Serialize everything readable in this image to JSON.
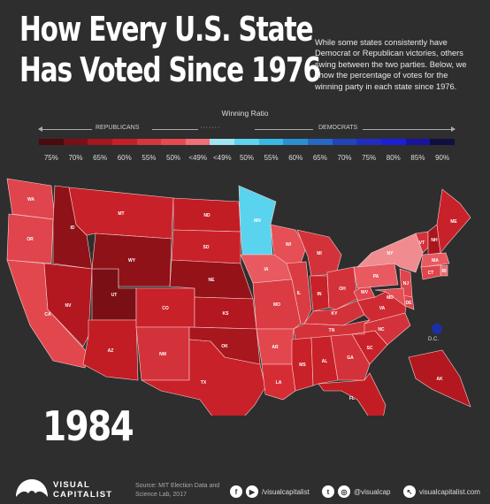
{
  "title": {
    "line1": "How Every U.S. State",
    "line2": "Has Voted Since 1976"
  },
  "subtitle": "While some states consistently have Democrat or Republican victories, others swing between the two parties. Below, we show the percentage of votes for the winning party in each state since 1976.",
  "legend": {
    "title": "Winning Ratio",
    "republicans_label": "REPUBLICANS",
    "democrats_label": "DEMOCRATS",
    "dots": "·······",
    "scale_labels": [
      "75%",
      "70%",
      "65%",
      "60%",
      "55%",
      "50%",
      "<49%",
      "<49%",
      "50%",
      "55%",
      "60%",
      "65%",
      "70%",
      "75%",
      "80%",
      "85%",
      "90%"
    ],
    "scale_colors": [
      "#4a0a0e",
      "#7a1016",
      "#a5161e",
      "#c51f28",
      "#d9353c",
      "#e64a50",
      "#f07075",
      "#9fe6f2",
      "#5fd2ee",
      "#3ab8e4",
      "#2a90d2",
      "#2768c4",
      "#2244b8",
      "#1f2ec0",
      "#1c1fd8",
      "#18149e",
      "#101040"
    ]
  },
  "year": "1984",
  "map": {
    "states": [
      {
        "id": "WA",
        "label": "WA",
        "color": "#e0444c"
      },
      {
        "id": "OR",
        "label": "OR",
        "color": "#e0444c"
      },
      {
        "id": "CA",
        "label": "CA",
        "color": "#e3474e"
      },
      {
        "id": "ID",
        "label": "ID",
        "color": "#8f1218"
      },
      {
        "id": "NV",
        "label": "NV",
        "color": "#b3171f"
      },
      {
        "id": "UT",
        "label": "UT",
        "color": "#7a0f15"
      },
      {
        "id": "AZ",
        "label": "AZ",
        "color": "#c21d25"
      },
      {
        "id": "MT",
        "label": "MT",
        "color": "#c92129"
      },
      {
        "id": "WY",
        "label": "WY",
        "color": "#8f1218"
      },
      {
        "id": "CO",
        "label": "CO",
        "color": "#c92129"
      },
      {
        "id": "NM",
        "label": "NM",
        "color": "#d4323a"
      },
      {
        "id": "ND",
        "label": "ND",
        "color": "#c21d25"
      },
      {
        "id": "SD",
        "label": "SD",
        "color": "#c92129"
      },
      {
        "id": "NE",
        "label": "NE",
        "color": "#951318"
      },
      {
        "id": "KS",
        "label": "KS",
        "color": "#b3171f"
      },
      {
        "id": "OK",
        "label": "OK",
        "color": "#a8161e"
      },
      {
        "id": "TX",
        "label": "TX",
        "color": "#c92129"
      },
      {
        "id": "MN",
        "label": "MN",
        "color": "#5ad3ef"
      },
      {
        "id": "IA",
        "label": "IA",
        "color": "#e85a60"
      },
      {
        "id": "MO",
        "label": "MO",
        "color": "#db3b42"
      },
      {
        "id": "AR",
        "label": "AR",
        "color": "#e3474e"
      },
      {
        "id": "LA",
        "label": "LA",
        "color": "#d62d35"
      },
      {
        "id": "WI",
        "label": "WI",
        "color": "#e64f55"
      },
      {
        "id": "IL",
        "label": "IL",
        "color": "#db3b42"
      },
      {
        "id": "MI",
        "label": "MI",
        "color": "#d4323a"
      },
      {
        "id": "IN",
        "label": "IN",
        "color": "#c92129"
      },
      {
        "id": "OH",
        "label": "OH",
        "color": "#d4323a"
      },
      {
        "id": "KY",
        "label": "KY",
        "color": "#d4323a"
      },
      {
        "id": "TN",
        "label": "TN",
        "color": "#d4323a"
      },
      {
        "id": "MS",
        "label": "MS",
        "color": "#c92129"
      },
      {
        "id": "AL",
        "label": "AL",
        "color": "#c92129"
      },
      {
        "id": "GA",
        "label": "GA",
        "color": "#d4323a"
      },
      {
        "id": "FL",
        "label": "FL",
        "color": "#c21d25"
      },
      {
        "id": "SC",
        "label": "SC",
        "color": "#c92129"
      },
      {
        "id": "NC",
        "label": "NC",
        "color": "#d4323a"
      },
      {
        "id": "VA",
        "label": "VA",
        "color": "#cf2a32"
      },
      {
        "id": "WV",
        "label": "WV",
        "color": "#e0444c"
      },
      {
        "id": "PA",
        "label": "PA",
        "color": "#e85a60"
      },
      {
        "id": "NY",
        "label": "NY",
        "color": "#f08c90"
      },
      {
        "id": "VT",
        "label": "VT",
        "color": "#d4323a"
      },
      {
        "id": "NH",
        "label": "NH",
        "color": "#a8161e"
      },
      {
        "id": "ME",
        "label": "ME",
        "color": "#c92129"
      },
      {
        "id": "MA",
        "label": "MA",
        "color": "#e85a60"
      },
      {
        "id": "RI",
        "label": "RI",
        "color": "#ec6a6f"
      },
      {
        "id": "CT",
        "label": "CT",
        "color": "#e0444c"
      },
      {
        "id": "NJ",
        "label": "NJ",
        "color": "#e0444c"
      },
      {
        "id": "DE",
        "label": "DE",
        "color": "#e0444c"
      },
      {
        "id": "MD",
        "label": "MD",
        "color": "#e64f55"
      },
      {
        "id": "AK",
        "label": "AK",
        "color": "#b3171f"
      },
      {
        "id": "HI",
        "label": "HI",
        "color": "#e64f55"
      }
    ],
    "dc": {
      "label": "D.C.",
      "color": "#1b2ea8"
    }
  },
  "footer": {
    "brand_line1": "VISUAL",
    "brand_line2": "CAPITALIST",
    "source": "Source: MIT Election Data and Science Lab, 2017",
    "facebook_icon": "f",
    "youtube_icon": "▶",
    "handle_youtube": "/visualcapitalist",
    "twitter_icon": "t",
    "instagram_icon": "◎",
    "handle_social": "@visualcap",
    "web_icon": "↖",
    "website": "visualcapitalist.com"
  }
}
